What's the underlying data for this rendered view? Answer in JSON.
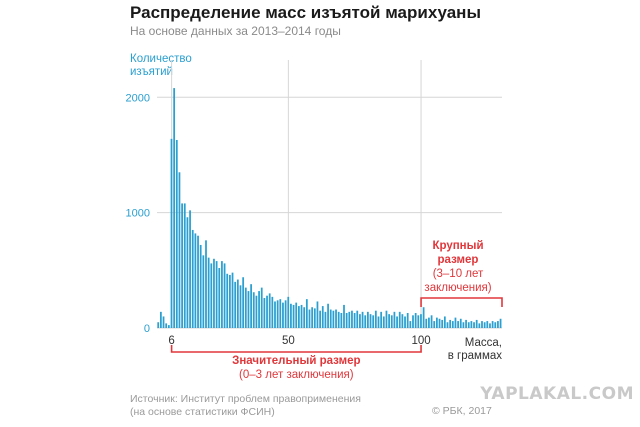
{
  "header": {
    "title": "Распределение масс изъятой марихуаны",
    "subtitle": "На основе данных за 2013–2014 годы"
  },
  "footer": {
    "source_line1": "Источник: Институт проблем правоприменения",
    "source_line2": "(на основе статистики ФСИН)",
    "copyright": "© РБК, 2017"
  },
  "watermark": "YAPLAKAL.COM",
  "colors": {
    "bars": "#2a9fd0",
    "annotation": "#e0373b",
    "grid": "#d6d6d6"
  },
  "chart_data": {
    "type": "bar",
    "ylabel_line1": "Количество",
    "ylabel_line2": "изъятий",
    "xlabel_line1": "Масса,",
    "xlabel_line2": "в граммах",
    "ylim": [
      0,
      2150
    ],
    "yticks": [
      0,
      1000,
      2000
    ],
    "xticks": [
      "6",
      "50",
      "100"
    ],
    "grid": "horizontal-and-vertical",
    "annotations": {
      "significant": {
        "title": "Значительный размер",
        "subtitle": "(0–3 лет заключения)",
        "from": "6",
        "to": "100"
      },
      "large": {
        "title_line1": "Крупный",
        "title_line2": "размер",
        "subtitle_line1": "(3–10 лет",
        "subtitle_line2": "заключения)",
        "from": "100"
      }
    },
    "x": [
      1,
      2,
      3,
      4,
      5,
      6,
      7,
      8,
      9,
      10,
      11,
      12,
      13,
      14,
      15,
      16,
      17,
      18,
      19,
      20,
      21,
      22,
      23,
      24,
      25,
      26,
      27,
      28,
      29,
      30,
      31,
      32,
      33,
      34,
      35,
      36,
      37,
      38,
      39,
      40,
      41,
      42,
      43,
      44,
      45,
      46,
      47,
      48,
      49,
      50,
      51,
      52,
      53,
      54,
      55,
      56,
      57,
      58,
      59,
      60,
      61,
      62,
      63,
      64,
      65,
      66,
      67,
      68,
      69,
      70,
      71,
      72,
      73,
      74,
      75,
      76,
      77,
      78,
      79,
      80,
      81,
      82,
      83,
      84,
      85,
      86,
      87,
      88,
      89,
      90,
      91,
      92,
      93,
      94,
      95,
      96,
      97,
      98,
      99,
      100,
      101,
      102,
      103,
      104,
      105,
      106,
      107,
      108,
      109,
      110,
      111,
      112,
      113,
      114,
      115,
      116,
      117,
      118,
      119,
      120,
      121,
      122,
      123,
      124,
      125,
      126,
      127,
      128,
      129,
      130
    ],
    "values": [
      50,
      140,
      100,
      40,
      25,
      1640,
      2080,
      1630,
      1350,
      1080,
      1080,
      960,
      1020,
      850,
      820,
      800,
      720,
      630,
      760,
      610,
      560,
      600,
      580,
      520,
      580,
      560,
      470,
      460,
      480,
      400,
      420,
      370,
      440,
      350,
      320,
      380,
      310,
      280,
      320,
      350,
      260,
      280,
      300,
      270,
      230,
      240,
      250,
      220,
      240,
      270,
      210,
      200,
      220,
      190,
      200,
      180,
      250,
      160,
      180,
      170,
      230,
      150,
      190,
      140,
      210,
      160,
      150,
      160,
      140,
      130,
      200,
      130,
      140,
      150,
      130,
      150,
      120,
      140,
      110,
      140,
      120,
      110,
      150,
      100,
      140,
      100,
      150,
      120,
      110,
      140,
      100,
      140,
      120,
      100,
      130,
      60,
      110,
      130,
      110,
      120,
      180,
      80,
      90,
      110,
      60,
      90,
      80,
      70,
      100,
      50,
      70,
      60,
      90,
      60,
      80,
      50,
      70,
      50,
      60,
      50,
      70,
      40,
      60,
      50,
      60,
      40,
      60,
      50,
      60,
      80
    ]
  }
}
